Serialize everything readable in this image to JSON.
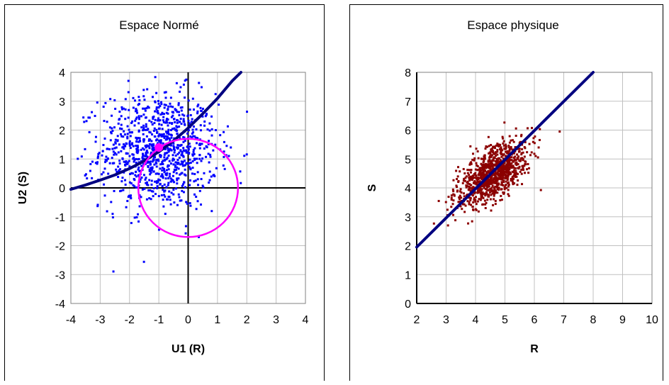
{
  "chart_data": [
    {
      "type": "scatter",
      "title": "Espace Normé",
      "xlabel": "U1 (R)",
      "ylabel": "U2 (S)",
      "xlim": [
        -4,
        4
      ],
      "ylim": [
        -4,
        4
      ],
      "xticks": [
        "-4",
        "-3",
        "-2",
        "-1",
        "0",
        "1",
        "2",
        "3",
        "4"
      ],
      "yticks": [
        "-4",
        "-3",
        "-2",
        "-1",
        "0",
        "1",
        "2",
        "3",
        "4"
      ],
      "grid": true,
      "legend": "none",
      "series": [
        {
          "kind": "points",
          "color": "#0000ff",
          "count": 1000,
          "center": [
            -1.0,
            1.3
          ],
          "spread": [
            1.0,
            1.0
          ],
          "correlation": 0.0
        },
        {
          "kind": "limit-state-curve",
          "color": "#000080",
          "x": [
            -4.0,
            -3.5,
            -3.0,
            -2.5,
            -2.0,
            -1.5,
            -1.0,
            -0.5,
            0.0,
            0.5,
            1.0,
            1.5,
            1.8
          ],
          "y": [
            -0.05,
            0.1,
            0.27,
            0.45,
            0.67,
            0.93,
            1.25,
            1.63,
            2.07,
            2.57,
            3.1,
            3.7,
            4.1
          ]
        },
        {
          "kind": "circle",
          "color": "#ff00ff",
          "cx": 0.0,
          "cy": 0.0,
          "r": 1.7
        },
        {
          "kind": "design-point",
          "color": "#ff00ff",
          "x": -1.0,
          "y": 1.4
        }
      ]
    },
    {
      "type": "scatter",
      "title": "Espace physique",
      "xlabel": "R",
      "ylabel": "S",
      "xlim": [
        2,
        10
      ],
      "ylim": [
        0,
        8
      ],
      "xticks": [
        "2",
        "3",
        "4",
        "5",
        "6",
        "7",
        "8",
        "9",
        "10"
      ],
      "yticks": [
        "0",
        "1",
        "2",
        "3",
        "4",
        "5",
        "6",
        "7",
        "8"
      ],
      "grid": true,
      "legend": "none",
      "series": [
        {
          "kind": "points",
          "color": "#8b0000",
          "count": 1000,
          "center": [
            4.6,
            4.5
          ],
          "spread": [
            0.6,
            0.55
          ],
          "correlation": 0.6
        },
        {
          "kind": "limit-state-curve",
          "color": "#000080",
          "x": [
            2.0,
            8.0
          ],
          "y": [
            1.95,
            8.0
          ]
        }
      ]
    }
  ]
}
